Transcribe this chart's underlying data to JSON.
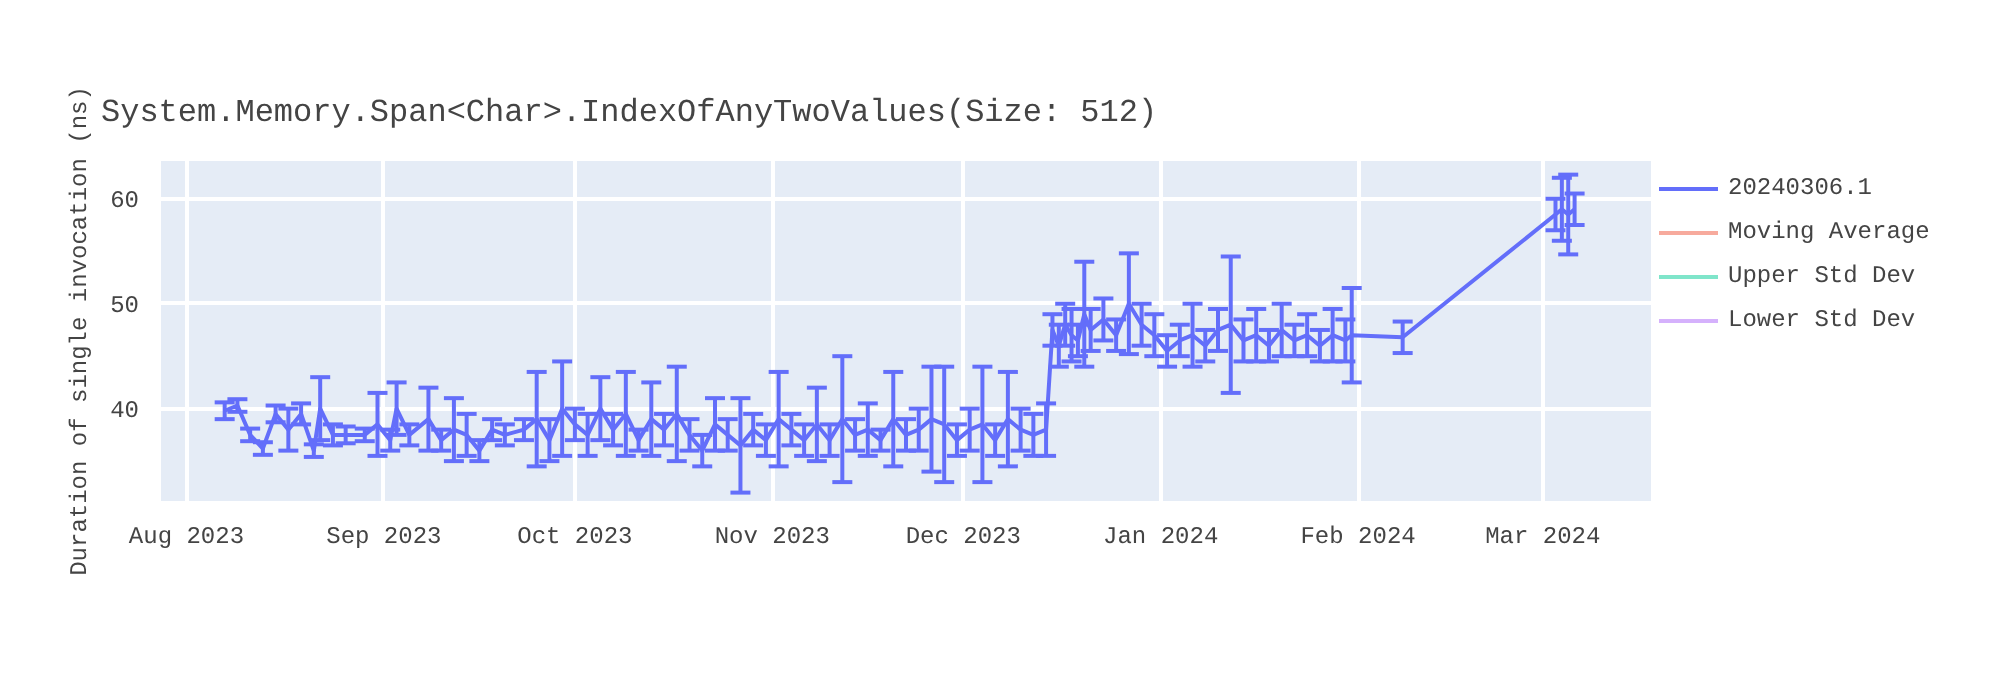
{
  "chart_data": {
    "type": "line",
    "title": "System.Memory.Span<Char>.IndexOfAnyTwoValues(Size: 512)",
    "ylabel": "Duration of single invocation (ns)",
    "xlim": [
      "2023-07-28",
      "2024-03-18"
    ],
    "xticks": [
      {
        "value": "2023-08-01",
        "label": "Aug 2023"
      },
      {
        "value": "2023-09-01",
        "label": "Sep 2023"
      },
      {
        "value": "2023-10-01",
        "label": "Oct 2023"
      },
      {
        "value": "2023-11-01",
        "label": "Nov 2023"
      },
      {
        "value": "2023-12-01",
        "label": "Dec 2023"
      },
      {
        "value": "2024-01-01",
        "label": "Jan 2024"
      },
      {
        "value": "2024-02-01",
        "label": "Feb 2024"
      },
      {
        "value": "2024-03-01",
        "label": "Mar 2024"
      }
    ],
    "ylim": [
      31.2,
      63.6
    ],
    "yticks": [
      40,
      50,
      60
    ],
    "grid": true,
    "legend": "right",
    "series": [
      {
        "name": "20240306.1",
        "color": "#636efa",
        "x": [
          "2023-08-07",
          "2023-08-09",
          "2023-08-11",
          "2023-08-13",
          "2023-08-15",
          "2023-08-17",
          "2023-08-19",
          "2023-08-21",
          "2023-08-22",
          "2023-08-24",
          "2023-08-26",
          "2023-08-29",
          "2023-08-31",
          "2023-09-02",
          "2023-09-03",
          "2023-09-05",
          "2023-09-08",
          "2023-09-10",
          "2023-09-12",
          "2023-09-14",
          "2023-09-16",
          "2023-09-18",
          "2023-09-20",
          "2023-09-23",
          "2023-09-25",
          "2023-09-27",
          "2023-09-29",
          "2023-10-01",
          "2023-10-03",
          "2023-10-05",
          "2023-10-07",
          "2023-10-09",
          "2023-10-11",
          "2023-10-13",
          "2023-10-15",
          "2023-10-17",
          "2023-10-19",
          "2023-10-21",
          "2023-10-23",
          "2023-10-25",
          "2023-10-27",
          "2023-10-29",
          "2023-10-31",
          "2023-11-02",
          "2023-11-04",
          "2023-11-06",
          "2023-11-08",
          "2023-11-10",
          "2023-11-12",
          "2023-11-14",
          "2023-11-16",
          "2023-11-18",
          "2023-11-20",
          "2023-11-22",
          "2023-11-24",
          "2023-11-26",
          "2023-11-28",
          "2023-11-30",
          "2023-12-02",
          "2023-12-04",
          "2023-12-06",
          "2023-12-08",
          "2023-12-10",
          "2023-12-12",
          "2023-12-14",
          "2023-12-15",
          "2023-12-16",
          "2023-12-17",
          "2023-12-18",
          "2023-12-19",
          "2023-12-20",
          "2023-12-21",
          "2023-12-23",
          "2023-12-25",
          "2023-12-27",
          "2023-12-29",
          "2023-12-31",
          "2024-01-02",
          "2024-01-04",
          "2024-01-06",
          "2024-01-08",
          "2024-01-10",
          "2024-01-12",
          "2024-01-14",
          "2024-01-16",
          "2024-01-18",
          "2024-01-20",
          "2024-01-22",
          "2024-01-24",
          "2024-01-26",
          "2024-01-28",
          "2024-01-30",
          "2024-01-31",
          "2024-02-08",
          "2024-03-03",
          "2024-03-04",
          "2024-03-05",
          "2024-03-06"
        ],
        "values": [
          39.8,
          40.3,
          37.5,
          36.2,
          39.5,
          38.0,
          39.5,
          36.0,
          40.0,
          37.5,
          37.5,
          37.5,
          38.5,
          37.0,
          40.0,
          37.5,
          39.0,
          37.0,
          38.0,
          37.5,
          36.0,
          38.0,
          37.5,
          38.0,
          39.0,
          37.0,
          40.0,
          38.5,
          37.5,
          40.0,
          38.0,
          39.5,
          37.0,
          39.0,
          38.0,
          39.5,
          37.5,
          36.0,
          38.5,
          37.5,
          36.5,
          38.0,
          37.0,
          39.0,
          38.0,
          37.0,
          38.5,
          37.0,
          39.0,
          37.5,
          38.0,
          37.0,
          39.0,
          37.5,
          38.0,
          39.0,
          38.5,
          37.0,
          38.0,
          38.5,
          37.0,
          39.0,
          38.0,
          37.5,
          38.0,
          47.5,
          46.0,
          48.0,
          47.0,
          46.5,
          49.0,
          47.5,
          48.5,
          47.0,
          50.0,
          48.0,
          47.0,
          45.5,
          46.5,
          47.0,
          46.0,
          47.5,
          48.0,
          46.5,
          47.0,
          46.0,
          47.5,
          46.5,
          47.0,
          46.0,
          47.0,
          46.5,
          47.0,
          46.8,
          58.5,
          59.0,
          58.5,
          59.0
        ],
        "errors": [
          0.8,
          0.6,
          0.6,
          0.6,
          0.8,
          2.0,
          1.0,
          0.6,
          3.0,
          1.0,
          0.8,
          0.6,
          3.0,
          1.0,
          2.5,
          1.0,
          3.0,
          1.0,
          3.0,
          2.0,
          1.0,
          1.0,
          1.0,
          1.0,
          4.5,
          2.0,
          4.5,
          1.5,
          2.0,
          3.0,
          1.5,
          4.0,
          1.0,
          3.5,
          1.5,
          4.5,
          1.5,
          1.5,
          2.5,
          1.5,
          4.5,
          1.5,
          1.5,
          4.5,
          1.5,
          1.5,
          3.5,
          1.5,
          6.0,
          1.5,
          2.5,
          1.0,
          4.5,
          1.5,
          2.0,
          5.0,
          5.5,
          1.5,
          2.0,
          5.5,
          1.5,
          4.5,
          2.0,
          2.0,
          2.5,
          1.5,
          2.0,
          2.0,
          2.5,
          1.5,
          5.0,
          2.0,
          2.0,
          1.5,
          4.8,
          2.0,
          2.0,
          1.5,
          1.5,
          3.0,
          1.5,
          2.0,
          6.5,
          2.0,
          2.5,
          1.5,
          2.5,
          1.5,
          2.0,
          1.5,
          2.5,
          2.0,
          4.5,
          1.5,
          1.5,
          3.0,
          3.8,
          1.5
        ]
      },
      {
        "name": "Moving Average",
        "color": "#ef553b"
      },
      {
        "name": "Upper Std Dev",
        "color": "#00cc96"
      },
      {
        "name": "Lower Std Dev",
        "color": "#ab63fa"
      }
    ]
  }
}
